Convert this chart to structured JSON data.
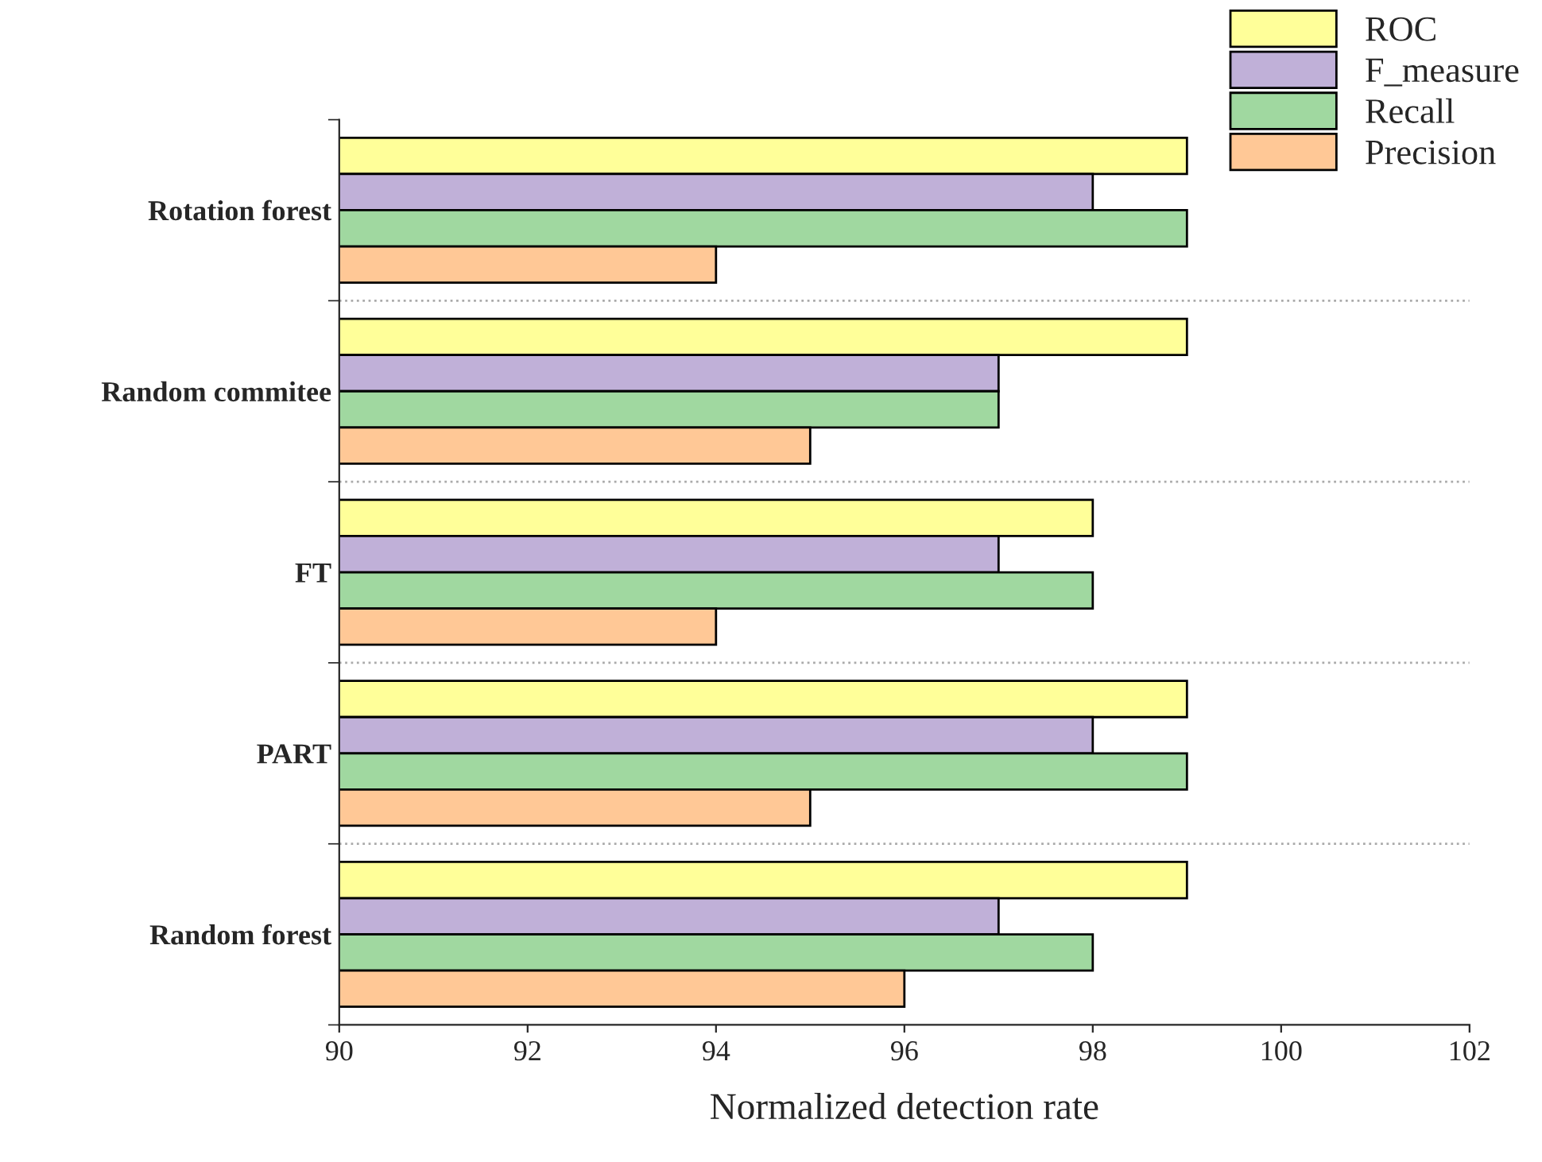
{
  "chart_data": {
    "type": "bar",
    "orientation": "horizontal",
    "xlabel": "Normalized detection rate",
    "categories": [
      "Rotation forest",
      "Random commitee",
      "FT",
      "PART",
      "Random forest"
    ],
    "series": [
      {
        "name": "ROC",
        "color": "#ffff99",
        "values": [
          99,
          99,
          98,
          99,
          99
        ]
      },
      {
        "name": "F_measure",
        "color": "#c0b0d8",
        "values": [
          98,
          97,
          97,
          98,
          97
        ]
      },
      {
        "name": "Recall",
        "color": "#a0d8a0",
        "values": [
          99,
          97,
          98,
          99,
          98
        ]
      },
      {
        "name": "Precision",
        "color": "#ffc896",
        "values": [
          94,
          95,
          94,
          95,
          96
        ]
      }
    ],
    "xlim": [
      90,
      102
    ],
    "xticks": [
      90,
      92,
      94,
      96,
      98,
      100,
      102
    ],
    "grid": "y",
    "legend": "top right"
  }
}
